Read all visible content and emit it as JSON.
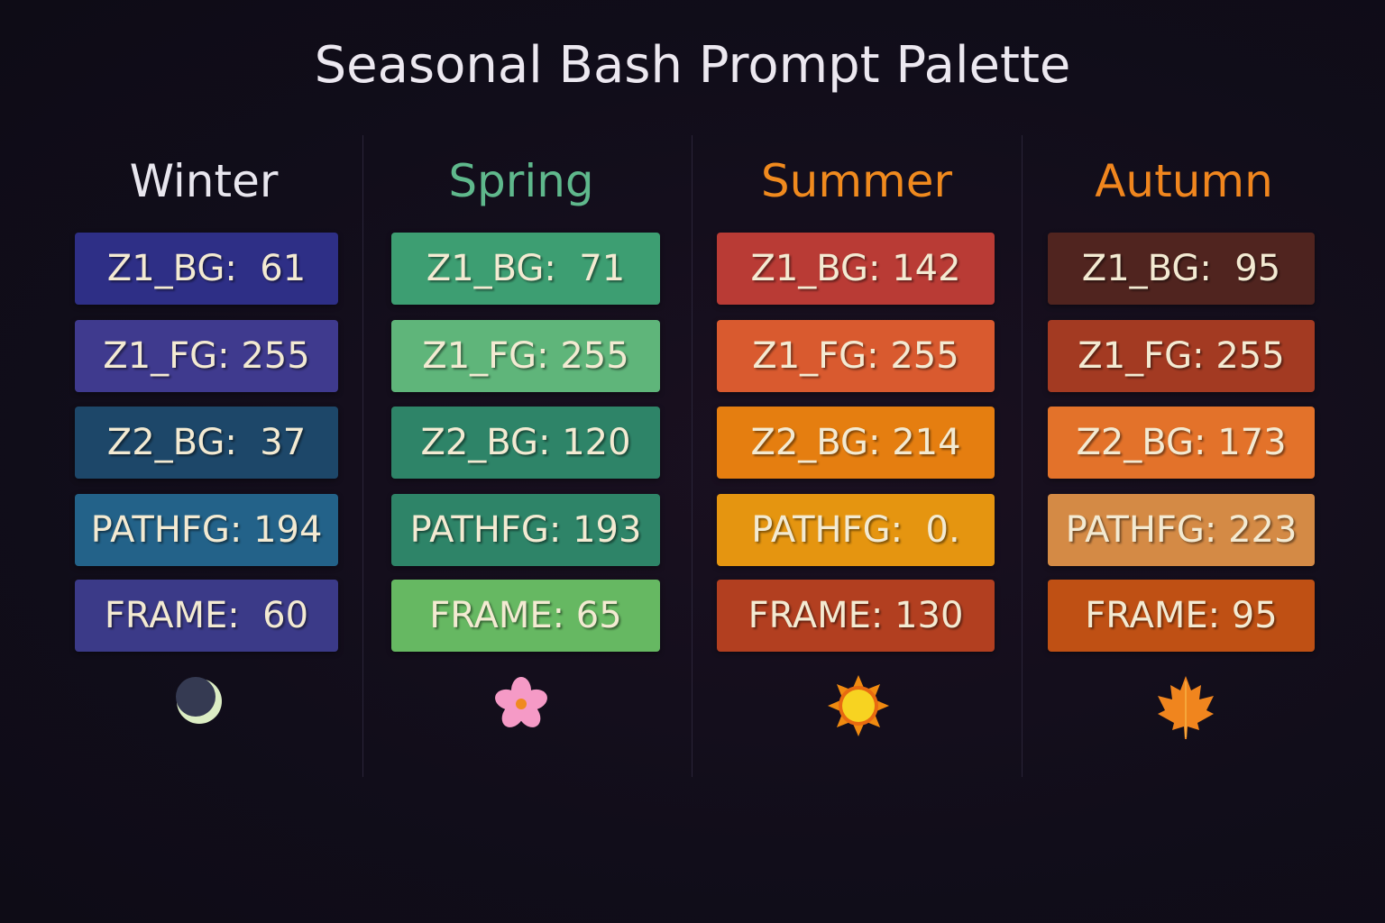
{
  "title": "Seasonal Bash Prompt Palette",
  "seasons": [
    {
      "name": "Winter",
      "color": "#e8e6ee",
      "icon": "crescent-moon-icon",
      "items": [
        {
          "label": "Z1_BG:  61",
          "color": "#2e2f86"
        },
        {
          "label": "Z1_FG: 255",
          "color": "#3f3a8e"
        },
        {
          "label": "Z2_BG:  37",
          "color": "#1d4769"
        },
        {
          "label": "PATHFG: 194",
          "color": "#236289"
        },
        {
          "label": "FRAME:  60",
          "color": "#3b3a88"
        }
      ]
    },
    {
      "name": "Spring",
      "color": "#5fb88c",
      "icon": "blossom-icon",
      "items": [
        {
          "label": "Z1_BG:  71",
          "color": "#3d9e72"
        },
        {
          "label": "Z1_FG: 255",
          "color": "#5fb57a"
        },
        {
          "label": "Z2_BG: 120",
          "color": "#2e8468"
        },
        {
          "label": "PATHFG: 193",
          "color": "#2e8468"
        },
        {
          "label": "FRAME: 65",
          "color": "#66b862"
        }
      ]
    },
    {
      "name": "Summer",
      "color": "#f08a1e",
      "icon": "sun-icon",
      "items": [
        {
          "label": "Z1_BG: 142",
          "color": "#b93b35"
        },
        {
          "label": "Z1_FG: 255",
          "color": "#d95a2f"
        },
        {
          "label": "Z2_BG: 214",
          "color": "#e57e10"
        },
        {
          "label": "PATHFG:  0.",
          "color": "#e59510"
        },
        {
          "label": "FRAME: 130",
          "color": "#b23f20"
        }
      ]
    },
    {
      "name": "Autumn",
      "color": "#f0861e",
      "icon": "maple-leaf-icon",
      "items": [
        {
          "label": "Z1_BG:  95",
          "color": "#50241f"
        },
        {
          "label": "Z1_FG: 255",
          "color": "#a33a22"
        },
        {
          "label": "Z2_BG: 173",
          "color": "#e3722a"
        },
        {
          "label": "PATHFG: 223",
          "color": "#d48a45"
        },
        {
          "label": "FRAME: 95",
          "color": "#bf5014"
        }
      ]
    }
  ]
}
